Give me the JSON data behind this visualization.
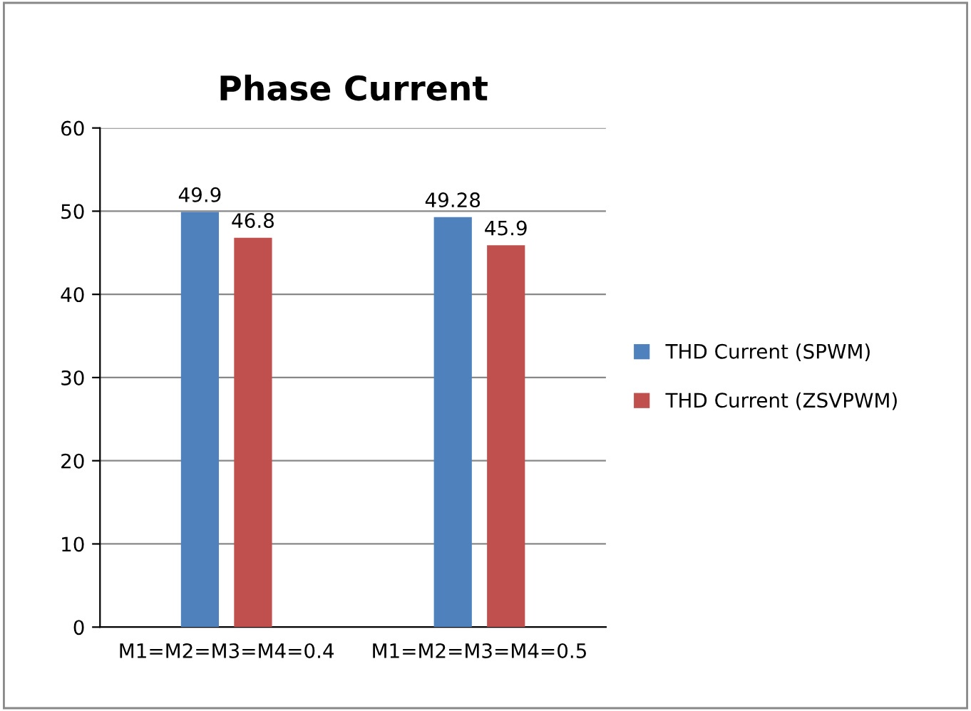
{
  "chart_data": {
    "type": "bar",
    "title": "Phase Current",
    "categories": [
      "M1=M2=M3=M4=0.4",
      "M1=M2=M3=M4=0.5"
    ],
    "series": [
      {
        "name": "THD Current (SPWM)",
        "color": "#4f81bd",
        "values": [
          49.9,
          49.28
        ]
      },
      {
        "name": "THD Current (ZSVPWM)",
        "color": "#c0504d",
        "values": [
          46.8,
          45.9
        ]
      }
    ],
    "ylim": [
      0,
      60
    ],
    "yticks": [
      0,
      10,
      20,
      30,
      40,
      50,
      60
    ],
    "grid": "y",
    "legend": "right",
    "data_labels": true
  }
}
